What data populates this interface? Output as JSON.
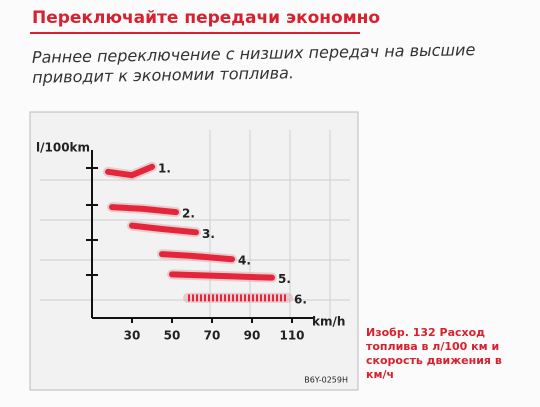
{
  "header": {
    "title": "Переключайте передачи экономно"
  },
  "paragraph": {
    "lines": [
      "Раннее переключение с низших передач на высшие",
      "приводит к экономии топлива."
    ]
  },
  "figure": {
    "code": "B6Y-0259H",
    "caption": {
      "lines": [
        "Изобр. 132   Расход",
        "топлива в л/100 км и",
        "скорость движения в",
        "км/ч"
      ]
    },
    "chart_data": {
      "type": "line",
      "y_label": "l/100km",
      "x_label": "km/h",
      "xlim": [
        10,
        120
      ],
      "xticks": [
        30,
        50,
        70,
        90,
        110
      ],
      "ylim": [
        0,
        10
      ],
      "series": [
        {
          "name": "1.",
          "color": "#e5253a",
          "x": [
            18,
            30,
            40
          ],
          "values": [
            8.7,
            8.5,
            9.0
          ]
        },
        {
          "name": "2.",
          "color": "#e5253a",
          "x": [
            20,
            35,
            52
          ],
          "values": [
            6.6,
            6.5,
            6.3
          ]
        },
        {
          "name": "3.",
          "color": "#e5253a",
          "x": [
            30,
            45,
            62
          ],
          "values": [
            5.5,
            5.3,
            5.1
          ]
        },
        {
          "name": "4.",
          "color": "#e5253a",
          "x": [
            45,
            60,
            80
          ],
          "values": [
            3.8,
            3.7,
            3.5
          ]
        },
        {
          "name": "5.",
          "color": "#e5253a",
          "x": [
            50,
            75,
            100
          ],
          "values": [
            2.6,
            2.5,
            2.4
          ]
        },
        {
          "name": "6.",
          "color": "#e5253a",
          "dashed": true,
          "x": [
            58,
            80,
            108
          ],
          "values": [
            1.2,
            1.2,
            1.2
          ]
        }
      ]
    }
  }
}
